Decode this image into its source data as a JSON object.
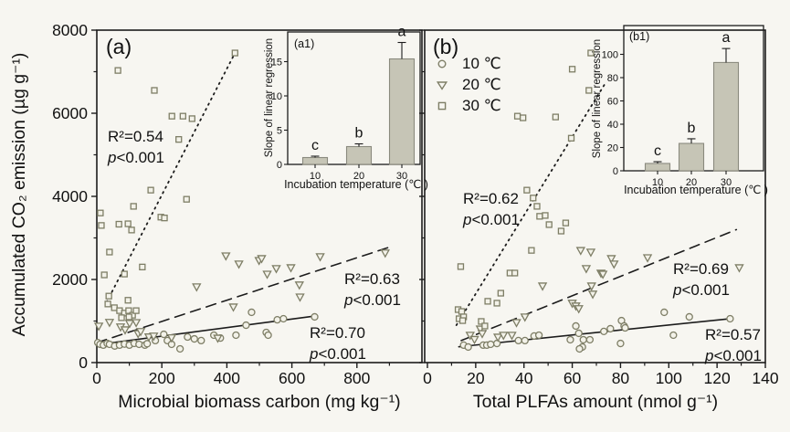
{
  "figure": {
    "y_axis_title": "Accumulated CO₂ emission (µg g⁻¹)"
  },
  "colors": {
    "background": "#f7f6f1",
    "axis": "#1c1c1c",
    "text": "#111111",
    "marker_stroke": "#7e7e66",
    "marker_fill": "#f3f2e9",
    "bar_fill": "#c6c5b6",
    "bar_stroke": "#8a8a7e",
    "line": "#1c1c1c"
  },
  "chart_data": [
    {
      "id": "panel-a",
      "type": "scatter",
      "panel_label": "(a)",
      "xlabel": "Microbial biomass carbon (mg kg⁻¹)",
      "ylabel": "Accumulated CO₂ emission (µg g⁻¹)",
      "xlim": [
        0,
        1000
      ],
      "ylim": [
        0,
        8000
      ],
      "xticks": [
        0,
        200,
        400,
        600,
        800
      ],
      "yticks": [
        0,
        2000,
        4000,
        6000,
        8000
      ],
      "series": [
        {
          "name": "10 ℃",
          "marker": "circle",
          "regression": {
            "style": "solid",
            "r2": "R²=0.70",
            "p_label": "p",
            "p_value": "<0.001",
            "line": [
              [
                0,
                430
              ],
              [
                670,
                1120
              ]
            ]
          },
          "points": [
            [
              3,
              480
            ],
            [
              10,
              440
            ],
            [
              20,
              420
            ],
            [
              32,
              460
            ],
            [
              39,
              440
            ],
            [
              55,
              400
            ],
            [
              70,
              420
            ],
            [
              85,
              445
            ],
            [
              100,
              420
            ],
            [
              115,
              462
            ],
            [
              130,
              440
            ],
            [
              148,
              420
            ],
            [
              155,
              455
            ],
            [
              180,
              530
            ],
            [
              206,
              680
            ],
            [
              217,
              530
            ],
            [
              230,
              440
            ],
            [
              256,
              330
            ],
            [
              279,
              615
            ],
            [
              300,
              570
            ],
            [
              321,
              530
            ],
            [
              360,
              660
            ],
            [
              380,
              590
            ],
            [
              428,
              660
            ],
            [
              459,
              900
            ],
            [
              476,
              1210
            ],
            [
              521,
              725
            ],
            [
              527,
              660
            ],
            [
              555,
              1030
            ],
            [
              574,
              1055
            ],
            [
              670,
              1100
            ]
          ]
        },
        {
          "name": "20 ℃",
          "marker": "triangle-down",
          "regression": {
            "style": "dashed",
            "r2": "R²=0.63",
            "p_label": "p",
            "p_value": "<0.001",
            "line": [
              [
                0,
                480
              ],
              [
                905,
                2790
              ]
            ]
          },
          "points": [
            [
              6,
              880
            ],
            [
              39,
              970
            ],
            [
              73,
              860
            ],
            [
              87,
              790
            ],
            [
              101,
              945
            ],
            [
              121,
              965
            ],
            [
              127,
              700
            ],
            [
              135,
              750
            ],
            [
              160,
              620
            ],
            [
              175,
              640
            ],
            [
              230,
              600
            ],
            [
              307,
              1825
            ],
            [
              372,
              590
            ],
            [
              420,
              1340
            ],
            [
              397,
              2570
            ],
            [
              437,
              2375
            ],
            [
              499,
              2460
            ],
            [
              507,
              2505
            ],
            [
              524,
              2130
            ],
            [
              552,
              2265
            ],
            [
              597,
              2285
            ],
            [
              623,
              1870
            ],
            [
              625,
              1580
            ],
            [
              687,
              2550
            ],
            [
              887,
              2640
            ]
          ]
        },
        {
          "name": "30 ℃",
          "marker": "square",
          "regression": {
            "style": "dotted",
            "r2": "R²=0.54",
            "p_label": "p",
            "p_value": "<0.001",
            "line": [
              [
                30,
                1450
              ],
              [
                425,
                7450
              ]
            ]
          },
          "points": [
            [
              65,
              7030
            ],
            [
              177,
              6550
            ],
            [
              231,
              5930
            ],
            [
              265,
              5930
            ],
            [
              293,
              5870
            ],
            [
              252,
              5370
            ],
            [
              425,
              7450
            ],
            [
              166,
              4150
            ],
            [
              276,
              3930
            ],
            [
              113,
              3760
            ],
            [
              11,
              3600
            ],
            [
              14,
              3300
            ],
            [
              68,
              3330
            ],
            [
              96,
              3340
            ],
            [
              107,
              3190
            ],
            [
              197,
              3500
            ],
            [
              208,
              3480
            ],
            [
              39,
              2660
            ],
            [
              140,
              2300
            ],
            [
              23,
              2110
            ],
            [
              85,
              2130
            ],
            [
              37,
              1600
            ],
            [
              34,
              1410
            ],
            [
              96,
              1500
            ],
            [
              54,
              1320
            ],
            [
              70,
              1250
            ],
            [
              85,
              1190
            ],
            [
              98,
              1250
            ],
            [
              110,
              1140
            ],
            [
              121,
              1250
            ],
            [
              76,
              1080
            ],
            [
              99,
              1100
            ]
          ]
        }
      ]
    },
    {
      "id": "panel-b",
      "type": "scatter",
      "panel_label": "(b)",
      "xlabel": "Total PLFAs amount (nmol g⁻¹)",
      "ylabel": "Accumulated CO₂ emission (µg g⁻¹)",
      "xlim": [
        0,
        140
      ],
      "ylim": [
        0,
        8000
      ],
      "xticks": [
        0,
        20,
        40,
        60,
        80,
        100,
        120,
        140
      ],
      "yticks": [
        0,
        2000,
        4000,
        6000,
        8000
      ],
      "series": [
        {
          "name": "10 ℃",
          "marker": "circle",
          "regression": {
            "style": "solid",
            "r2": "R²=0.57",
            "p_label": "p",
            "p_value": "<0.001",
            "line": [
              [
                13,
                380
              ],
              [
                126,
                1060
              ]
            ]
          },
          "points": [
            [
              15,
              420
            ],
            [
              16.9,
              375
            ],
            [
              23.1,
              420
            ],
            [
              24.6,
              420
            ],
            [
              26.2,
              440
            ],
            [
              28.8,
              460
            ],
            [
              37.7,
              530
            ],
            [
              40.4,
              530
            ],
            [
              44.2,
              640
            ],
            [
              46.2,
              660
            ],
            [
              59.2,
              550
            ],
            [
              61.5,
              880
            ],
            [
              62.7,
              705
            ],
            [
              64.2,
              375
            ],
            [
              64.6,
              550
            ],
            [
              67.3,
              550
            ],
            [
              73.1,
              750
            ],
            [
              75.8,
              815
            ],
            [
              80,
              460
            ],
            [
              80.4,
              1010
            ],
            [
              81.5,
              880
            ],
            [
              81.9,
              835
            ],
            [
              98.1,
              1210
            ],
            [
              101.9,
              660
            ],
            [
              108.5,
              1100
            ],
            [
              125.4,
              1055
            ],
            [
              63,
              330
            ]
          ]
        },
        {
          "name": "20 ℃",
          "marker": "triangle-down",
          "regression": {
            "style": "dashed",
            "r2": "R²=0.69",
            "p_label": "p",
            "p_value": "<0.001",
            "line": [
              [
                14,
                530
              ],
              [
                128,
                3200
              ]
            ]
          },
          "points": [
            [
              63.5,
              2700
            ],
            [
              67.7,
              2660
            ],
            [
              65.8,
              2265
            ],
            [
              71.9,
              2155
            ],
            [
              47.7,
              1845
            ],
            [
              68,
              1845
            ],
            [
              68.5,
              1650
            ],
            [
              60,
              1430
            ],
            [
              61.5,
              1365
            ],
            [
              62.7,
              1300
            ],
            [
              40.4,
              1100
            ],
            [
              36.9,
              965
            ],
            [
              17.7,
              660
            ],
            [
              21.9,
              810
            ],
            [
              22.7,
              700
            ],
            [
              29.2,
              615
            ],
            [
              31.5,
              660
            ],
            [
              35,
              660
            ],
            [
              76.2,
              2505
            ],
            [
              77.3,
              2375
            ],
            [
              91.2,
              2525
            ],
            [
              72.7,
              2130
            ],
            [
              129.2,
              2285
            ],
            [
              19.5,
              560
            ]
          ]
        },
        {
          "name": "30 ℃",
          "marker": "square",
          "regression": {
            "style": "dotted",
            "r2": "R²=0.62",
            "p_label": "p",
            "p_value": "<0.001",
            "line": [
              [
                12,
                900
              ],
              [
                74,
                6750
              ]
            ]
          },
          "points": [
            [
              67.7,
              7450
            ],
            [
              60,
              7060
            ],
            [
              66.9,
              6550
            ],
            [
              37.3,
              5930
            ],
            [
              39.6,
              5890
            ],
            [
              53.1,
              5910
            ],
            [
              59.6,
              5400
            ],
            [
              41.2,
              4150
            ],
            [
              43.8,
              3960
            ],
            [
              45.4,
              3760
            ],
            [
              46.5,
              3520
            ],
            [
              48.8,
              3540
            ],
            [
              50.4,
              3320
            ],
            [
              57.3,
              3360
            ],
            [
              55.4,
              3165
            ],
            [
              43.1,
              2700
            ],
            [
              13.8,
              2310
            ],
            [
              34.2,
              2155
            ],
            [
              36.2,
              2155
            ],
            [
              30.4,
              1670
            ],
            [
              25,
              1475
            ],
            [
              28.8,
              1430
            ],
            [
              12.7,
              1275
            ],
            [
              14.2,
              1230
            ],
            [
              13.1,
              1055
            ],
            [
              15,
              1100
            ],
            [
              14.6,
              1010
            ],
            [
              22.3,
              990
            ],
            [
              23.8,
              880
            ]
          ]
        }
      ]
    },
    {
      "id": "inset-a1",
      "type": "bar",
      "panel_label": "(a1)",
      "xlabel": "Incubation temperature (℃ )",
      "ylabel": "Slope of linear regression",
      "categories": [
        "10",
        "20",
        "30"
      ],
      "values": [
        1.0,
        2.6,
        15.4
      ],
      "errors": [
        0.2,
        0.4,
        2.4
      ],
      "sig_letters": [
        "c",
        "b",
        "a"
      ],
      "yticks": [
        0,
        5,
        10,
        15
      ],
      "ylim": [
        0,
        18.5
      ]
    },
    {
      "id": "inset-b1",
      "type": "bar",
      "panel_label": "(b1)",
      "xlabel": "Incubation temperature (℃ )",
      "ylabel": "Slope of linear regression",
      "categories": [
        "10",
        "20",
        "30"
      ],
      "values": [
        6.3,
        23.5,
        93
      ],
      "errors": [
        1.5,
        4,
        12
      ],
      "sig_letters": [
        "c",
        "b",
        "a"
      ],
      "yticks": [
        0,
        20,
        40,
        60,
        80,
        100
      ],
      "ylim": [
        0,
        116
      ]
    }
  ]
}
